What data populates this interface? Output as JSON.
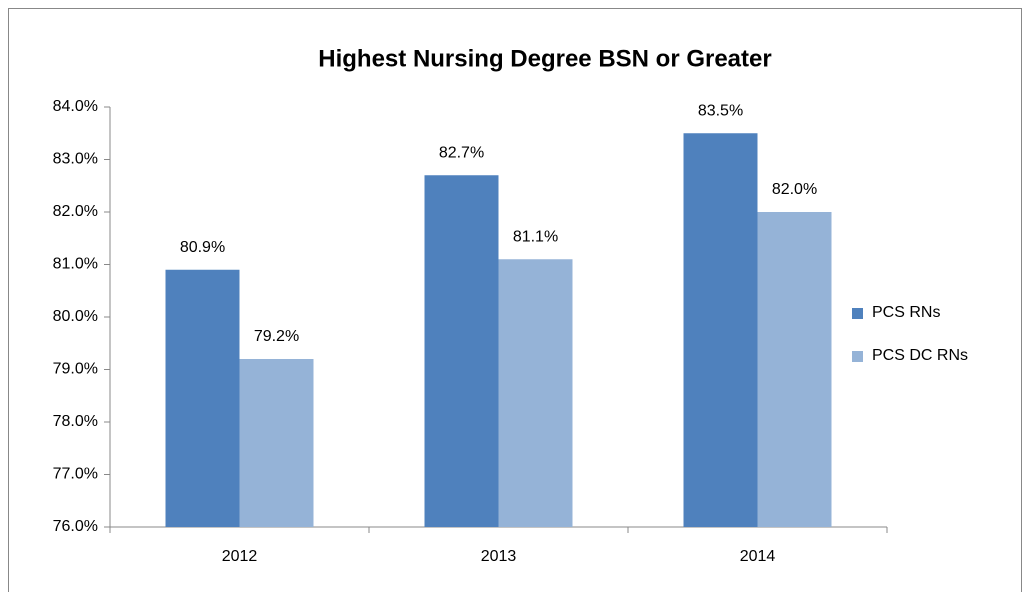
{
  "chart_data": {
    "type": "bar",
    "title": "Highest Nursing Degree BSN or Greater",
    "categories": [
      "2012",
      "2013",
      "2014"
    ],
    "series": [
      {
        "name": "PCS RNs",
        "color": "#4f81bd",
        "values": [
          80.9,
          82.7,
          83.5
        ],
        "value_labels": [
          "80.9%",
          "82.7%",
          "83.5%"
        ]
      },
      {
        "name": "PCS DC RNs",
        "color": "#95b3d7",
        "values": [
          79.2,
          81.1,
          82.0
        ],
        "value_labels": [
          "79.2%",
          "81.1%",
          "82.0%"
        ]
      }
    ],
    "ylim": [
      76,
      84
    ],
    "yticks": [
      {
        "value": 76,
        "label": "76.0%"
      },
      {
        "value": 77,
        "label": "77.0%"
      },
      {
        "value": 78,
        "label": "78.0%"
      },
      {
        "value": 79,
        "label": "79.0%"
      },
      {
        "value": 80,
        "label": "80.0%"
      },
      {
        "value": 81,
        "label": "81.0%"
      },
      {
        "value": 82,
        "label": "82.0%"
      },
      {
        "value": 83,
        "label": "83.0%"
      },
      {
        "value": 84,
        "label": "84.0%"
      }
    ],
    "grid": false,
    "legend": "right"
  }
}
